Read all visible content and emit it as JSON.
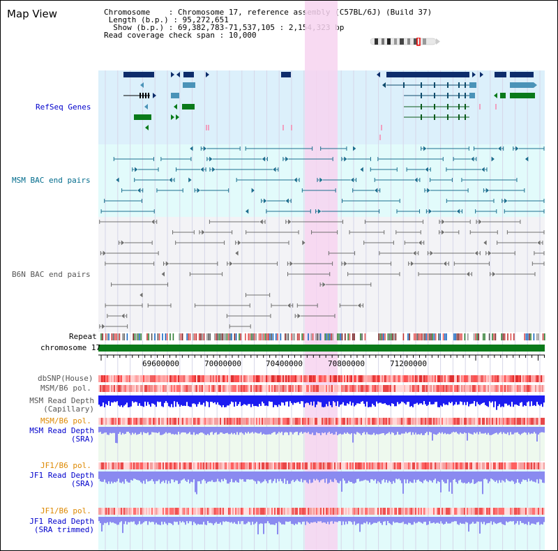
{
  "title": "Map View",
  "info": {
    "chromosome_label": "Chromosome",
    "chromosome_value": "Chromosome 17, reference assembly (C57BL/6J) (Build 37)",
    "length_label": "Length (b.p.)",
    "length_value": "95,272,651",
    "show_label": "Show (b.p.)",
    "show_value": "69,382,783-71,537,105 : 2,154,323 bp",
    "coverage_label": "Read coverage check span",
    "coverage_value": "10,000"
  },
  "tracks": {
    "refseq": "RefSeq Genes",
    "msm_bac": "MSM BAC end pairs",
    "b6n_bac": "B6N BAC end pairs",
    "repeat": "Repeat",
    "chromosome": "chromosome 17",
    "dbsnp": "dbSNP(House)",
    "msm_b6_pol_1": "MSM/B6 pol.",
    "msm_depth_cap": "MSM Read Depth\n(Capillary)",
    "msm_b6_pol_2": "MSM/B6 pol.",
    "msm_depth_sra": "MSM Read Depth\n(SRA)",
    "jf1_b6_pol_1": "JF1/B6 pol.",
    "jf1_depth_sra": "JF1 Read Depth\n(SRA)",
    "jf1_b6_pol_2": "JF1/B6 pol.",
    "jf1_depth_trim": "JF1 Read Depth\n(SRA trimmed)"
  },
  "axis": {
    "ticks": [
      "69600000",
      "70000000",
      "70400000",
      "70800000",
      "71200000"
    ]
  },
  "colors": {
    "highlight": "#f7d3f0",
    "refseq_bg": "#dcf0fb",
    "msm_bg": "#e2fbfb",
    "b6n_bg": "#f3f3f6",
    "gene_navy": "#0d2d6b",
    "gene_light": "#4a93b8",
    "gene_green": "#0a7a1a",
    "bac_teal": "#1b6f8f",
    "bac_grey": "#707070",
    "chrom_green": "#0a7a1a",
    "depth_blue": "#1c1cf0",
    "depth_light": "#8a8af0"
  }
}
